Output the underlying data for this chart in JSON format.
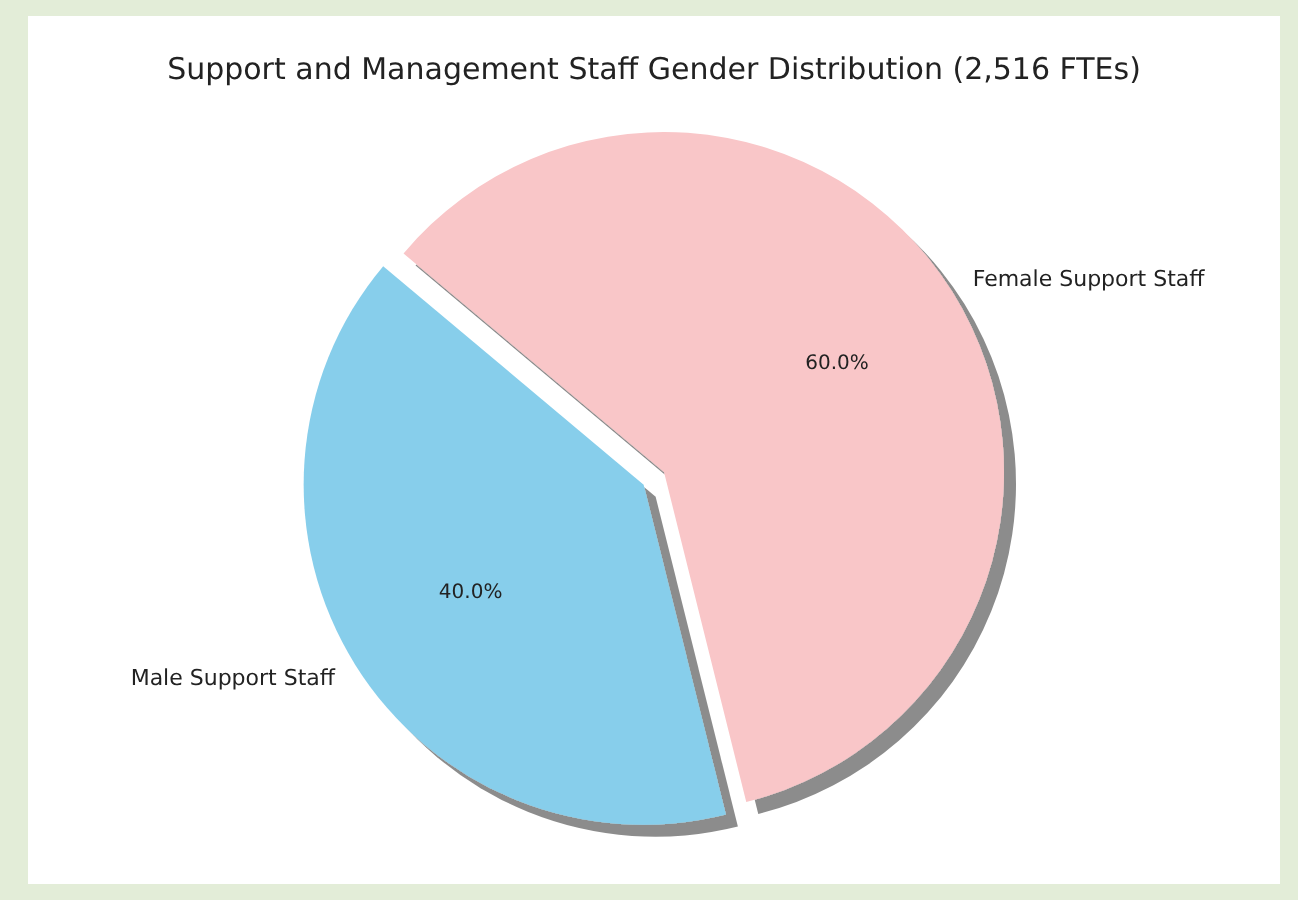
{
  "chart_data": {
    "type": "pie",
    "title": "Support and Management Staff Gender Distribution (2,516 FTEs)",
    "categories": [
      "Female Support Staff",
      "Male Support Staff"
    ],
    "values": [
      60,
      40
    ],
    "colors": [
      "#f9c6c8",
      "#87ceeb"
    ],
    "value_labels": [
      "60.0%",
      "40.0%"
    ],
    "legend": false
  }
}
